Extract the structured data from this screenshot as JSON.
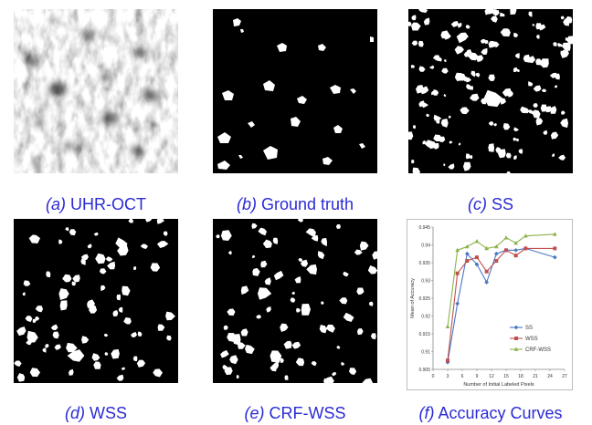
{
  "figure": {
    "panels": [
      {
        "letter": "(a)",
        "label": "UHR-OCT",
        "kind": "oct"
      },
      {
        "letter": "(b)",
        "label": "Ground truth",
        "kind": "mask-sparse"
      },
      {
        "letter": "(c)",
        "label": "SS",
        "kind": "mask-noisy"
      },
      {
        "letter": "(d)",
        "label": "WSS",
        "kind": "mask-medium"
      },
      {
        "letter": "(e)",
        "label": "CRF-WSS",
        "kind": "mask-medium"
      },
      {
        "letter": "(f)",
        "label": "Accuracy Curves",
        "kind": "chart"
      }
    ]
  },
  "colors": {
    "caption": "#2b2bd6",
    "ss": "#4a78c2",
    "wss": "#c0504d",
    "crf_wss": "#8bb34a"
  },
  "chart_data": {
    "type": "line",
    "title": "",
    "xlabel": "Number of Initial Labeled Pixels",
    "ylabel": "Mean of Accuracy",
    "xlim": [
      0,
      27
    ],
    "ylim": [
      0.905,
      0.945
    ],
    "xticks": [
      0,
      3,
      6,
      9,
      12,
      15,
      18,
      21,
      24,
      27
    ],
    "yticks": [
      0.905,
      0.91,
      0.915,
      0.92,
      0.925,
      0.93,
      0.935,
      0.94,
      0.945
    ],
    "ytick_labels": [
      "0.905",
      "0.91",
      "0.915",
      "0.92",
      "0.925",
      "0.93",
      "0.935",
      "0.94",
      "0.945"
    ],
    "legend_position": "bottom-right",
    "grid": false,
    "series": [
      {
        "name": "SS",
        "color": "#4a78c2",
        "marker": "diamond",
        "x": [
          3,
          5,
          7,
          9,
          11,
          13,
          15,
          17,
          19,
          25
        ],
        "y": [
          0.907,
          0.9235,
          0.9375,
          0.9345,
          0.9295,
          0.9375,
          0.9385,
          0.9385,
          0.939,
          0.9365
        ]
      },
      {
        "name": "WSS",
        "color": "#c0504d",
        "marker": "square",
        "x": [
          3,
          5,
          7,
          9,
          11,
          13,
          15,
          17,
          19,
          25
        ],
        "y": [
          0.9075,
          0.932,
          0.9355,
          0.9365,
          0.9325,
          0.9355,
          0.9385,
          0.937,
          0.939,
          0.939
        ]
      },
      {
        "name": "CRF-WSS",
        "color": "#8bb34a",
        "marker": "triangle",
        "x": [
          3,
          5,
          7,
          9,
          11,
          13,
          15,
          17,
          19,
          25
        ],
        "y": [
          0.917,
          0.9385,
          0.9395,
          0.941,
          0.939,
          0.9395,
          0.942,
          0.9405,
          0.9425,
          0.943
        ]
      }
    ]
  }
}
